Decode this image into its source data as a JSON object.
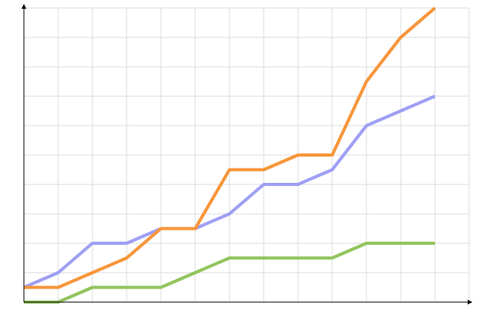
{
  "chart_data": {
    "type": "line",
    "x": [
      0,
      1,
      2,
      3,
      4,
      5,
      6,
      7,
      8,
      9,
      10,
      11,
      12
    ],
    "series": [
      {
        "color": "#92c55d",
        "values": [
          0,
          0,
          0.5,
          0.5,
          0.5,
          1,
          1.5,
          1.5,
          1.5,
          1.5,
          2,
          2,
          2
        ]
      },
      {
        "color": "#9f9ff5",
        "values": [
          0.5,
          1,
          2,
          2,
          2.5,
          2.5,
          3,
          4,
          4,
          4.5,
          6,
          6.5,
          7
        ]
      },
      {
        "color": "#f7963b",
        "values": [
          0.5,
          0.5,
          1,
          1.5,
          2.5,
          2.5,
          4.5,
          4.5,
          5,
          5,
          7.5,
          9,
          10
        ]
      }
    ],
    "xlim": [
      0,
      13
    ],
    "xticks": [
      0,
      1,
      2,
      3,
      4,
      5,
      6,
      7,
      8,
      9,
      10,
      11,
      12,
      13
    ],
    "ylim": [
      0,
      10
    ],
    "yticks": [
      0,
      1,
      2,
      3,
      4,
      5,
      6,
      7,
      8,
      9,
      10
    ],
    "grid": true
  }
}
